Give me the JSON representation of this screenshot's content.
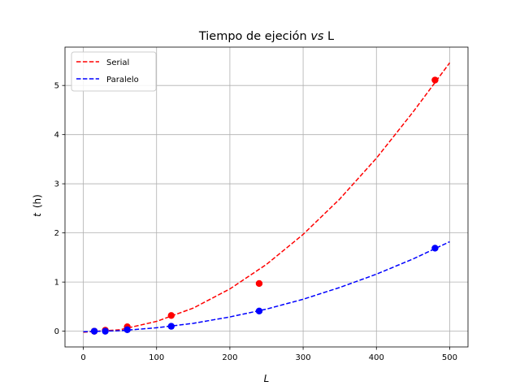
{
  "chart_data": {
    "type": "scatter",
    "title_prefix": "Tiempo de ejeción ",
    "title_italic": "vs",
    "title_suffix": " L",
    "xlabel": "L",
    "ylabel_var": "t",
    "ylabel_unit": "(h)",
    "xlim": [
      -25,
      525
    ],
    "ylim": [
      -0.32,
      5.78
    ],
    "xticks": [
      0,
      100,
      200,
      300,
      400,
      500
    ],
    "yticks": [
      0,
      1,
      2,
      3,
      4,
      5
    ],
    "grid": true,
    "legend_position": "top-left",
    "series": [
      {
        "name": "Serial",
        "color": "#ff0000",
        "points": {
          "x": [
            15,
            30,
            60,
            120,
            240,
            480
          ],
          "y": [
            0.0,
            0.02,
            0.09,
            0.32,
            0.97,
            5.11
          ]
        },
        "fit": {
          "x": [
            0,
            50,
            100,
            150,
            200,
            250,
            300,
            350,
            400,
            450,
            500
          ],
          "y": [
            -0.02,
            0.03,
            0.2,
            0.47,
            0.86,
            1.36,
            1.97,
            2.69,
            3.52,
            4.46,
            5.46
          ]
        }
      },
      {
        "name": "Paralelo",
        "color": "#0000ff",
        "points": {
          "x": [
            15,
            30,
            60,
            120,
            240,
            480
          ],
          "y": [
            0.0,
            0.0,
            0.03,
            0.1,
            0.41,
            1.69
          ]
        },
        "fit": {
          "x": [
            0,
            50,
            100,
            150,
            200,
            250,
            300,
            350,
            400,
            450,
            500
          ],
          "y": [
            -0.01,
            0.01,
            0.07,
            0.16,
            0.29,
            0.45,
            0.65,
            0.89,
            1.16,
            1.47,
            1.82
          ]
        }
      }
    ]
  }
}
